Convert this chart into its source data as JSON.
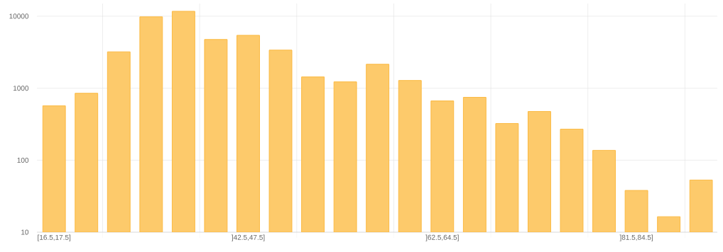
{
  "chart_data": {
    "type": "bar",
    "categories": [
      "[16.5,17.5]",
      null,
      null,
      null,
      null,
      null,
      "]42.5,47.5]",
      null,
      null,
      null,
      null,
      null,
      "]62.5,64.5]",
      null,
      null,
      null,
      null,
      null,
      "]81.5,84.5]",
      null,
      null
    ],
    "values": [
      570,
      850,
      3200,
      9800,
      11700,
      4750,
      5430,
      3380,
      1435,
      1225,
      2150,
      1280,
      666,
      747,
      323,
      475,
      270,
      137,
      38,
      16.4,
      53
    ],
    "color": "#fdca6b",
    "log": true,
    "ylim": [
      10,
      15000
    ],
    "yticks": [
      10,
      100,
      1000,
      10000
    ],
    "grid": true
  }
}
